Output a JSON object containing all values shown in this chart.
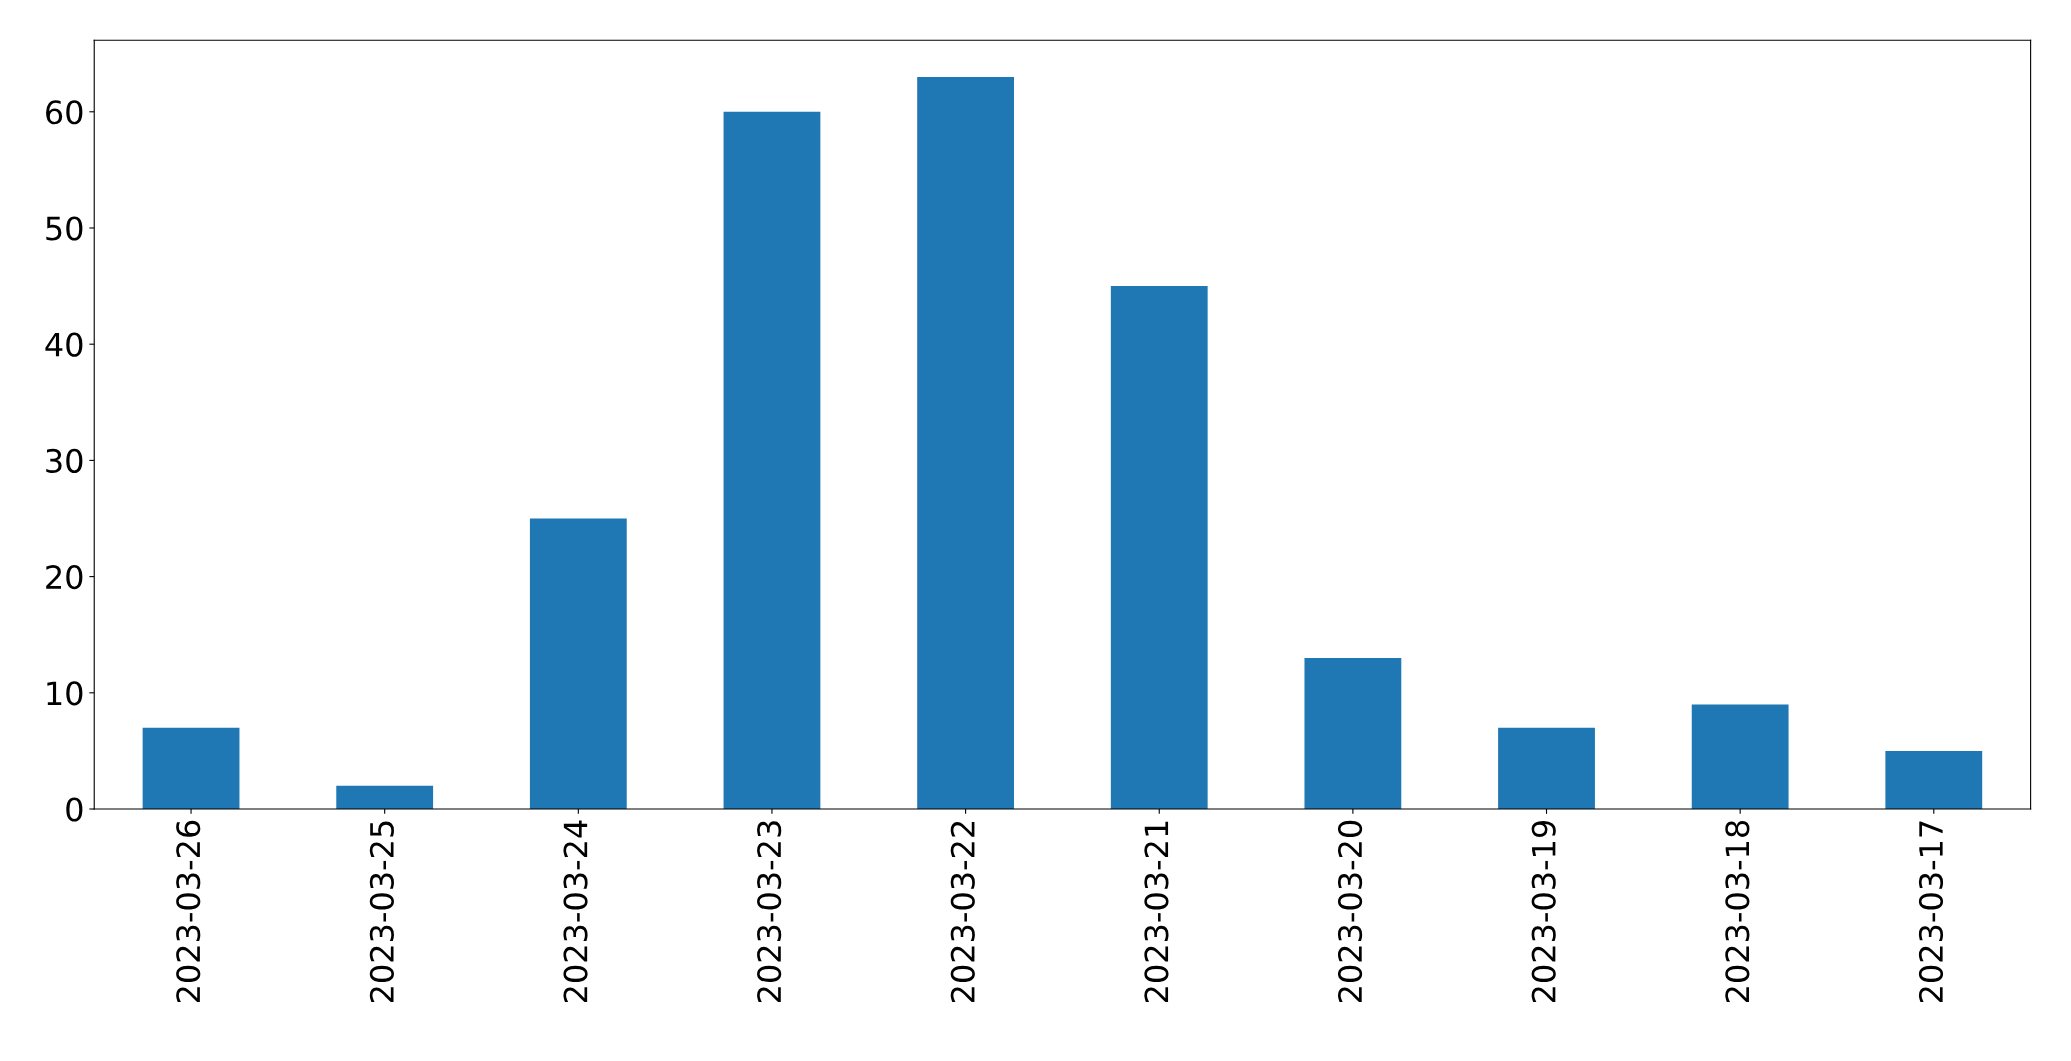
{
  "chart_data": {
    "type": "bar",
    "categories": [
      "2023-03-26",
      "2023-03-25",
      "2023-03-24",
      "2023-03-23",
      "2023-03-22",
      "2023-03-21",
      "2023-03-20",
      "2023-03-19",
      "2023-03-18",
      "2023-03-17"
    ],
    "values": [
      7,
      2,
      25,
      60,
      63,
      45,
      13,
      7,
      9,
      5
    ],
    "color": "#1f77b4",
    "ylim": [
      0,
      66.15
    ],
    "yticks": [
      0,
      10,
      20,
      30,
      40,
      50,
      60
    ],
    "grid": false,
    "legend": false
  }
}
